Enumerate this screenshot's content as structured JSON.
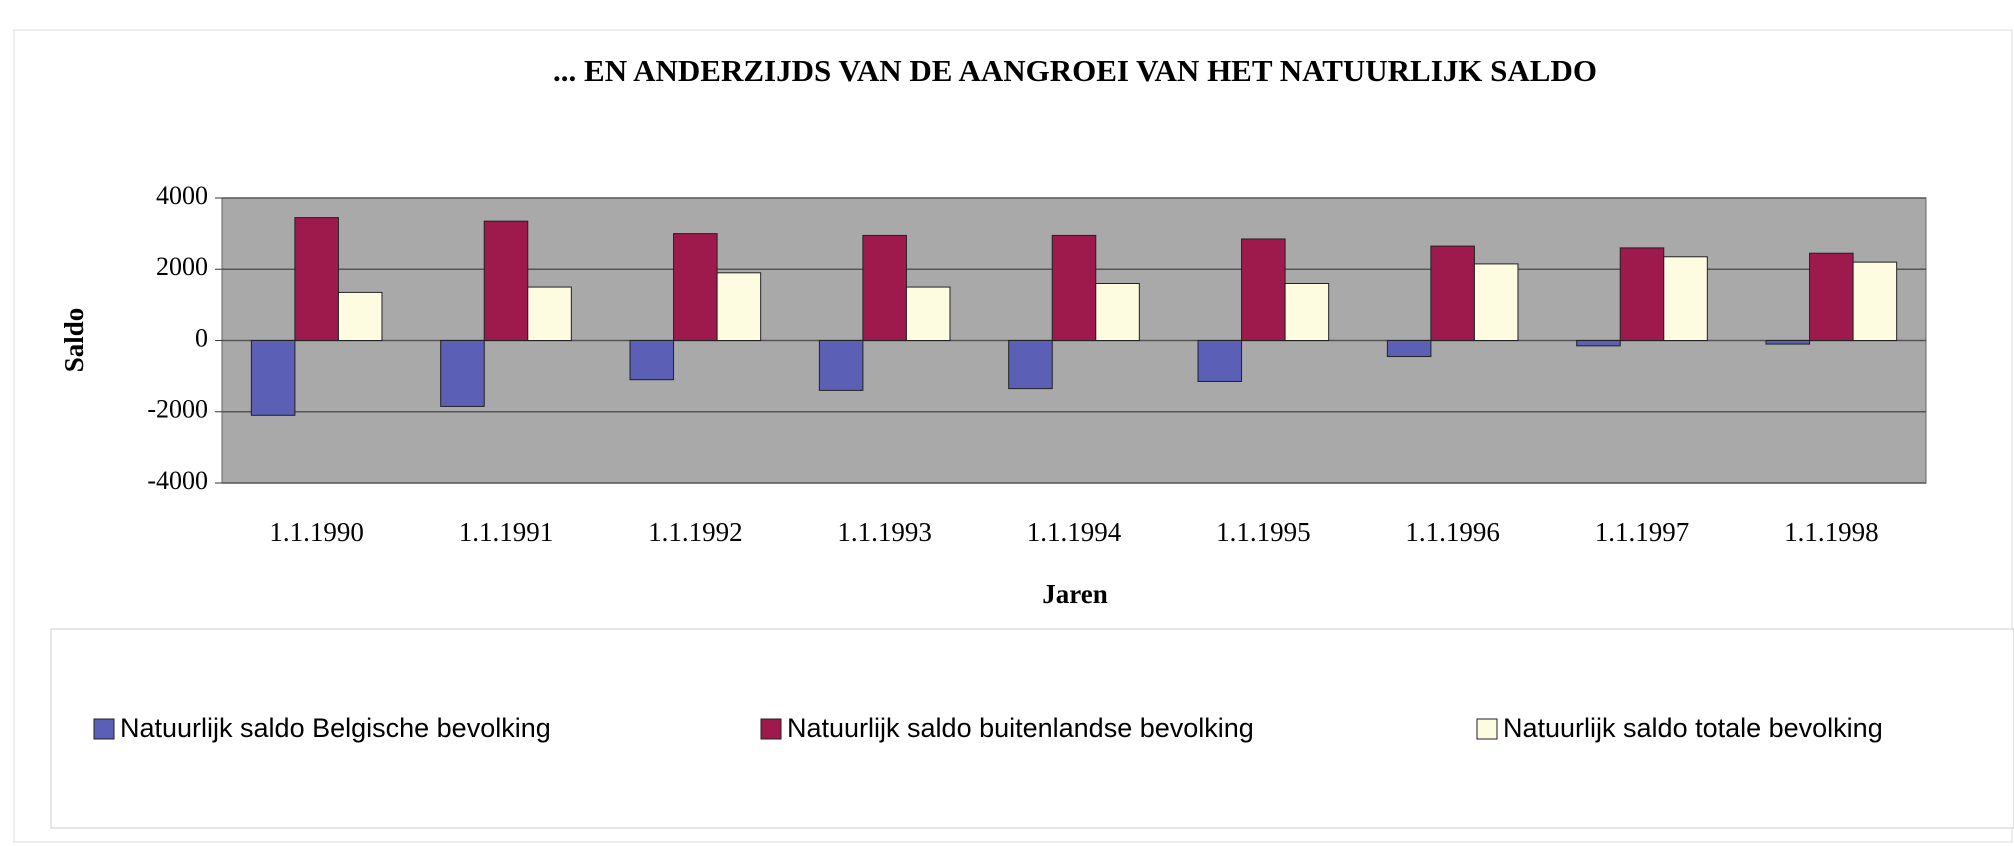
{
  "chart_data": {
    "type": "bar",
    "title": "... EN ANDERZIJDS VAN DE AANGROEI VAN HET NATUURLIJK SALDO",
    "x_label": "Jaren",
    "y_label": "Saldo",
    "categories": [
      "1.1.1990",
      "1.1.1991",
      "1.1.1992",
      "1.1.1993",
      "1.1.1994",
      "1.1.1995",
      "1.1.1996",
      "1.1.1997",
      "1.1.1998"
    ],
    "series": [
      {
        "name": "Natuurlijk saldo Belgische bevolking",
        "color": "#5b5fb6",
        "values": [
          -2100,
          -1850,
          -1100,
          -1400,
          -1350,
          -1150,
          -450,
          -150,
          -100
        ]
      },
      {
        "name": "Natuurlijk saldo buitenlandse bevolking",
        "color": "#9e1a4c",
        "values": [
          3450,
          3350,
          3000,
          2950,
          2950,
          2850,
          2650,
          2600,
          2450
        ]
      },
      {
        "name": "Natuurlijk saldo totale bevolking",
        "color": "#fdfbe0",
        "values": [
          1350,
          1500,
          1900,
          1500,
          1600,
          1600,
          2150,
          2350,
          2200
        ]
      }
    ],
    "ylim": [
      -4000,
      4000
    ],
    "yticks": [
      4000,
      2000,
      0,
      -2000,
      -4000
    ],
    "grid": true,
    "legend": "bottom"
  }
}
